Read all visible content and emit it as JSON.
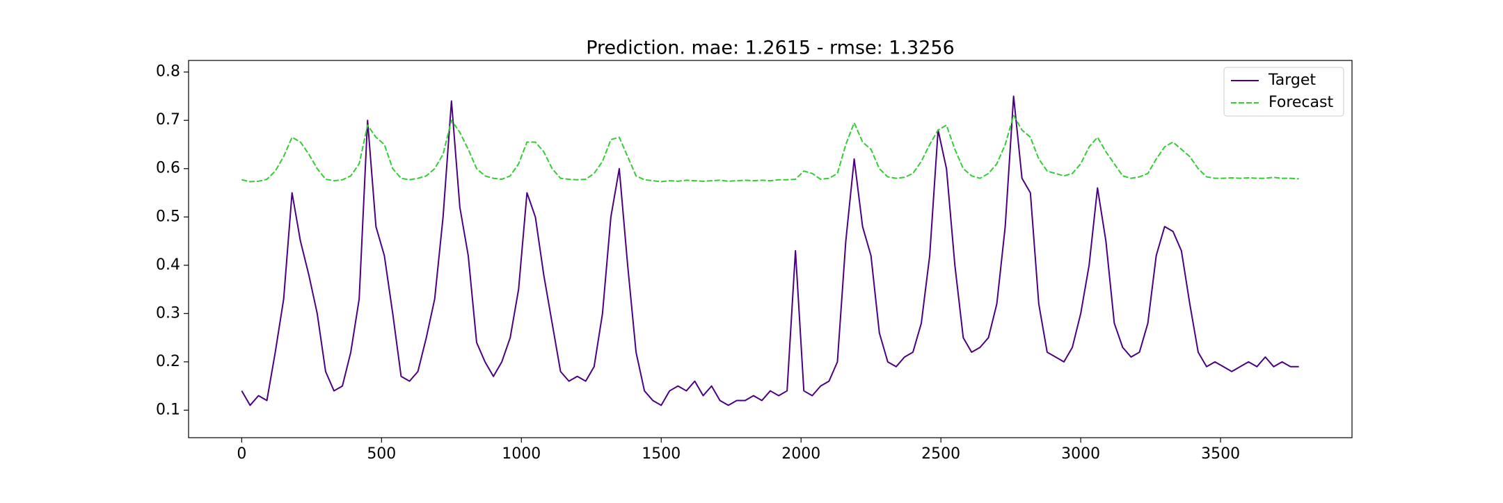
{
  "chart_data": {
    "type": "line",
    "title": "Prediction. mae: 1.2615 - rmse: 1.3256",
    "x": [
      0,
      30,
      60,
      90,
      120,
      150,
      180,
      210,
      240,
      270,
      300,
      330,
      360,
      390,
      420,
      450,
      480,
      510,
      540,
      570,
      600,
      630,
      660,
      690,
      720,
      750,
      780,
      810,
      840,
      870,
      900,
      930,
      960,
      990,
      1020,
      1050,
      1080,
      1110,
      1140,
      1170,
      1200,
      1230,
      1260,
      1290,
      1320,
      1350,
      1380,
      1410,
      1440,
      1470,
      1500,
      1530,
      1560,
      1590,
      1620,
      1650,
      1680,
      1710,
      1740,
      1770,
      1800,
      1830,
      1860,
      1890,
      1920,
      1950,
      1980,
      2010,
      2040,
      2070,
      2100,
      2130,
      2160,
      2190,
      2220,
      2250,
      2280,
      2310,
      2340,
      2370,
      2400,
      2430,
      2460,
      2490,
      2520,
      2550,
      2580,
      2610,
      2640,
      2670,
      2700,
      2730,
      2760,
      2790,
      2820,
      2850,
      2880,
      2910,
      2940,
      2970,
      3000,
      3030,
      3060,
      3090,
      3120,
      3150,
      3180,
      3210,
      3240,
      3270,
      3300,
      3330,
      3360,
      3390,
      3420,
      3450,
      3480,
      3510,
      3540,
      3570,
      3600,
      3630,
      3660,
      3690,
      3720,
      3750,
      3780
    ],
    "series": [
      {
        "name": "Target",
        "color": "#4b0082",
        "linestyle": "solid",
        "values": [
          0.14,
          0.11,
          0.13,
          0.12,
          0.22,
          0.33,
          0.55,
          0.45,
          0.38,
          0.3,
          0.18,
          0.14,
          0.15,
          0.22,
          0.33,
          0.7,
          0.48,
          0.42,
          0.3,
          0.17,
          0.16,
          0.18,
          0.25,
          0.33,
          0.5,
          0.74,
          0.52,
          0.42,
          0.24,
          0.2,
          0.17,
          0.2,
          0.25,
          0.35,
          0.55,
          0.5,
          0.38,
          0.28,
          0.18,
          0.16,
          0.17,
          0.16,
          0.19,
          0.3,
          0.5,
          0.6,
          0.4,
          0.22,
          0.14,
          0.12,
          0.11,
          0.14,
          0.15,
          0.14,
          0.16,
          0.13,
          0.15,
          0.12,
          0.11,
          0.12,
          0.12,
          0.13,
          0.12,
          0.14,
          0.13,
          0.14,
          0.43,
          0.14,
          0.13,
          0.15,
          0.16,
          0.2,
          0.45,
          0.62,
          0.48,
          0.42,
          0.26,
          0.2,
          0.19,
          0.21,
          0.22,
          0.28,
          0.42,
          0.68,
          0.6,
          0.4,
          0.25,
          0.22,
          0.23,
          0.25,
          0.32,
          0.48,
          0.75,
          0.58,
          0.55,
          0.32,
          0.22,
          0.21,
          0.2,
          0.23,
          0.3,
          0.4,
          0.56,
          0.45,
          0.28,
          0.23,
          0.21,
          0.22,
          0.28,
          0.42,
          0.48,
          0.47,
          0.43,
          0.32,
          0.22,
          0.19,
          0.2,
          0.19,
          0.18,
          0.19,
          0.2,
          0.19,
          0.21,
          0.19,
          0.2,
          0.19,
          0.19
        ]
      },
      {
        "name": "Forecast",
        "color": "#32cd32",
        "linestyle": "dashed",
        "values": [
          0.577,
          0.573,
          0.574,
          0.578,
          0.595,
          0.625,
          0.665,
          0.655,
          0.63,
          0.6,
          0.578,
          0.575,
          0.577,
          0.585,
          0.61,
          0.69,
          0.665,
          0.65,
          0.6,
          0.58,
          0.577,
          0.58,
          0.585,
          0.6,
          0.63,
          0.7,
          0.675,
          0.64,
          0.6,
          0.585,
          0.58,
          0.578,
          0.585,
          0.61,
          0.655,
          0.655,
          0.635,
          0.6,
          0.58,
          0.578,
          0.577,
          0.578,
          0.59,
          0.615,
          0.66,
          0.665,
          0.625,
          0.585,
          0.577,
          0.575,
          0.573,
          0.575,
          0.574,
          0.576,
          0.575,
          0.574,
          0.575,
          0.576,
          0.574,
          0.575,
          0.576,
          0.575,
          0.576,
          0.575,
          0.577,
          0.577,
          0.578,
          0.595,
          0.59,
          0.578,
          0.58,
          0.59,
          0.65,
          0.695,
          0.655,
          0.64,
          0.6,
          0.583,
          0.58,
          0.582,
          0.59,
          0.615,
          0.65,
          0.68,
          0.69,
          0.64,
          0.6,
          0.585,
          0.58,
          0.59,
          0.61,
          0.65,
          0.71,
          0.68,
          0.665,
          0.62,
          0.595,
          0.59,
          0.585,
          0.59,
          0.61,
          0.645,
          0.665,
          0.635,
          0.61,
          0.585,
          0.58,
          0.583,
          0.59,
          0.62,
          0.645,
          0.655,
          0.64,
          0.625,
          0.6,
          0.583,
          0.58,
          0.58,
          0.581,
          0.58,
          0.581,
          0.58,
          0.58,
          0.582,
          0.58,
          0.58,
          0.579
        ]
      }
    ],
    "xlim": [
      -190,
      3970
    ],
    "ylim": [
      0.043,
      0.824
    ],
    "xticks": [
      0,
      500,
      1000,
      1500,
      2000,
      2500,
      3000,
      3500
    ],
    "yticks": [
      0.1,
      0.2,
      0.3,
      0.4,
      0.5,
      0.6,
      0.7,
      0.8
    ],
    "grid": false,
    "legend": "upper right"
  }
}
